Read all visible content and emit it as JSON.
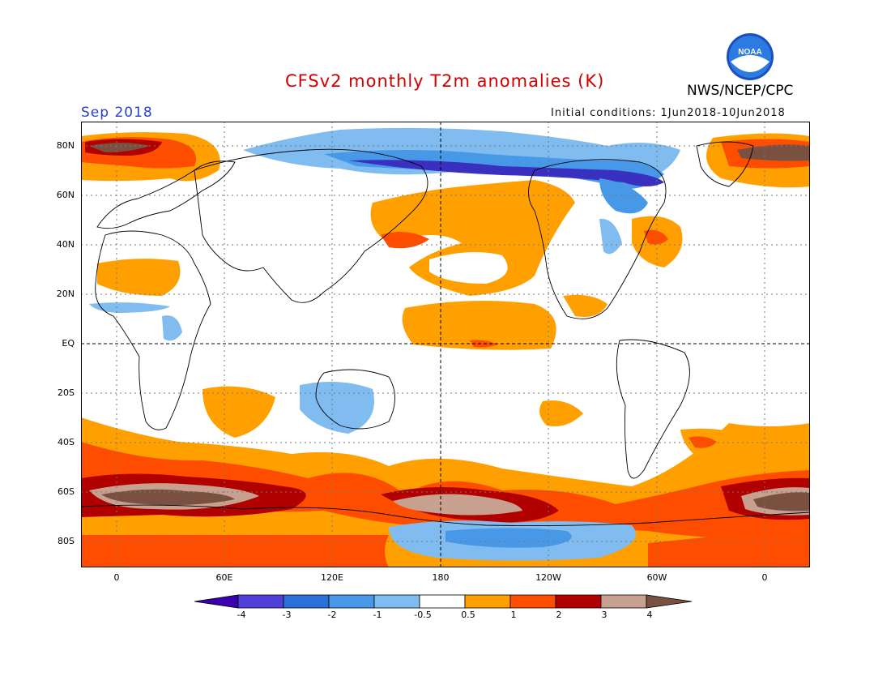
{
  "header": {
    "title": "CFSv2 monthly T2m anomalies (K)",
    "month": "Sep 2018",
    "initial_conditions": "Initial conditions: 1Jun2018-10Jun2018",
    "agency": "NWS/NCEP/CPC",
    "logo_text": "NOAA"
  },
  "axes": {
    "lat_labels": [
      "80N",
      "60N",
      "40N",
      "20N",
      "EQ",
      "20S",
      "40S",
      "60S",
      "80S"
    ],
    "lon_labels": [
      "0",
      "60E",
      "120E",
      "180",
      "120W",
      "60W",
      "0"
    ]
  },
  "colorbar": {
    "labels": [
      "-4",
      "-3",
      "-2",
      "-1",
      "-0.5",
      "0.5",
      "1",
      "2",
      "3",
      "4"
    ],
    "colors": [
      "#3a00b0",
      "#5040d8",
      "#2a70d8",
      "#4898e8",
      "#80bcf0",
      "#ffffff",
      "#ffa000",
      "#ff4d00",
      "#b00000",
      "#c8a090",
      "#7a5040"
    ]
  },
  "palette": {
    "title_color": "#d40000",
    "month_color": "#2a3fd0",
    "cold_light": "#80bcf0",
    "cold_mid": "#4898e8",
    "cold_strong": "#2a70d8",
    "cold_deep": "#3a30c0",
    "warm_light": "#ffa000",
    "warm_mid": "#ff4d00",
    "warm_strong": "#b00000",
    "warm_pink": "#c8a090",
    "warm_brown": "#7a5040"
  }
}
